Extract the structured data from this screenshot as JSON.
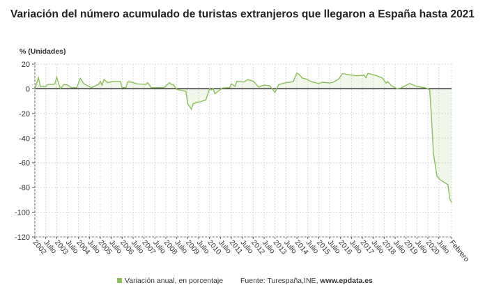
{
  "chart_data": {
    "type": "area",
    "title": "Variación del número acumulado de turistas extranjeros que llegaron a España hasta 2021",
    "ylabel": "% (Unidades)",
    "xlabel": "",
    "ylim": [
      -120,
      20
    ],
    "yticks": [
      20,
      0,
      -20,
      -40,
      -60,
      -80,
      -100,
      -120
    ],
    "x_unit": "month index from January 2002 (0 = Jan 2002, 229 = Feb 2021)",
    "xlim": [
      0,
      229
    ],
    "xtick_labels": [
      "2002",
      "Julio",
      "2003",
      "Julio",
      "2004",
      "Julio",
      "2005",
      "Julio",
      "2006",
      "Julio",
      "2007",
      "Julio",
      "2008",
      "Julio",
      "2009",
      "Julio",
      "2010",
      "Julio",
      "2011",
      "Julio",
      "2012",
      "Julio",
      "2013",
      "Julio",
      "2014",
      "Julio",
      "2015",
      "Julio",
      "2016",
      "Julio",
      "2017",
      "Julio",
      "2018",
      "Julio",
      "2019",
      "Julio",
      "2020",
      "Julio",
      "Febrero"
    ],
    "grid": true,
    "legend_position": "bottom",
    "series": [
      {
        "name": "Variación anual, en porcentaje",
        "color": "#8bbf5a",
        "points": [
          [
            0,
            0
          ],
          [
            2,
            9
          ],
          [
            3,
            2
          ],
          [
            6,
            2
          ],
          [
            7,
            3.5
          ],
          [
            10,
            3.5
          ],
          [
            11,
            4
          ],
          [
            12,
            9.5
          ],
          [
            14,
            0
          ],
          [
            16,
            3.5
          ],
          [
            18,
            3
          ],
          [
            20,
            1
          ],
          [
            23,
            1
          ],
          [
            25,
            8.5
          ],
          [
            27,
            4
          ],
          [
            31,
            1
          ],
          [
            35,
            3.5
          ],
          [
            36,
            6
          ],
          [
            37,
            3
          ],
          [
            38,
            7.5
          ],
          [
            40,
            5
          ],
          [
            43,
            6
          ],
          [
            47,
            6
          ],
          [
            48,
            1
          ],
          [
            50,
            1
          ],
          [
            51,
            5.5
          ],
          [
            53,
            5.5
          ],
          [
            56,
            4
          ],
          [
            61,
            3.5
          ],
          [
            62,
            5
          ],
          [
            64,
            1
          ],
          [
            66,
            1
          ],
          [
            71,
            1
          ],
          [
            74,
            5
          ],
          [
            75,
            3.5
          ],
          [
            76,
            3.5
          ],
          [
            78,
            -0.5
          ],
          [
            83,
            -2
          ],
          [
            84,
            -12
          ],
          [
            86,
            -16.5
          ],
          [
            87,
            -12
          ],
          [
            91,
            -10.5
          ],
          [
            94,
            -9
          ],
          [
            96,
            0
          ],
          [
            97,
            -1
          ],
          [
            98,
            0
          ],
          [
            99,
            -4
          ],
          [
            102,
            -0.5
          ],
          [
            103,
            0.5
          ],
          [
            107,
            1
          ],
          [
            108,
            4
          ],
          [
            110,
            2
          ],
          [
            111,
            6
          ],
          [
            115,
            5.5
          ],
          [
            117,
            7.5
          ],
          [
            120,
            6.2
          ],
          [
            123,
            1.5
          ],
          [
            126,
            3
          ],
          [
            129,
            2.5
          ],
          [
            132,
            -3
          ],
          [
            134,
            3.4
          ],
          [
            138,
            5
          ],
          [
            142,
            5.7
          ],
          [
            144,
            12.8
          ],
          [
            145,
            12
          ],
          [
            147,
            8.7
          ],
          [
            149,
            8
          ],
          [
            152,
            5.8
          ],
          [
            156,
            4.3
          ],
          [
            158,
            5.3
          ],
          [
            162,
            4.7
          ],
          [
            164,
            5.3
          ],
          [
            167,
            8
          ],
          [
            169,
            12.3
          ],
          [
            173,
            11.3
          ],
          [
            177,
            10.6
          ],
          [
            181,
            11
          ],
          [
            182,
            9
          ],
          [
            183,
            12.5
          ],
          [
            187,
            11
          ],
          [
            191,
            8.7
          ],
          [
            193,
            4.7
          ],
          [
            194,
            5.8
          ],
          [
            196,
            2.5
          ],
          [
            199,
            0
          ],
          [
            201,
            0.5
          ],
          [
            206,
            4.3
          ],
          [
            210,
            1.9
          ],
          [
            214,
            1
          ],
          [
            216,
            0
          ],
          [
            217,
            -1
          ],
          [
            218,
            -24
          ],
          [
            219,
            -52
          ],
          [
            221,
            -71
          ],
          [
            223,
            -74
          ],
          [
            227,
            -77.6
          ],
          [
            228,
            -89
          ],
          [
            229,
            -92
          ]
        ]
      }
    ],
    "source_label": "Fuente: Turespaña,INE,",
    "source_site": "www.epdata.es"
  }
}
